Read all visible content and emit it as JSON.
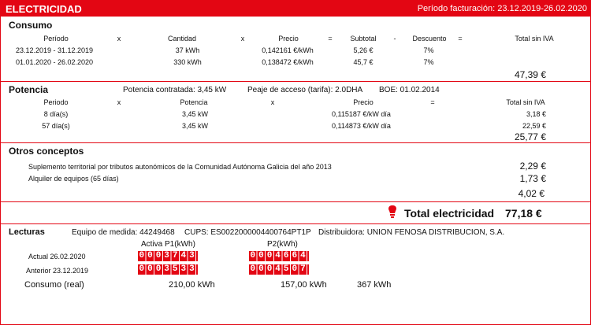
{
  "header": {
    "title": "ELECTRICIDAD",
    "period": "Período facturación: 23.12.2019-26.02.2020"
  },
  "consumo": {
    "title": "Consumo",
    "columns": [
      "Período",
      "x",
      "Cantidad",
      "x",
      "Precio",
      "=",
      "Subtotal",
      "-",
      "Descuento",
      "=",
      "Total sin IVA"
    ],
    "rows": [
      [
        "23.12.2019 - 31.12.2019",
        "37 kWh",
        "0,142161 €/kWh",
        "5,26 €",
        "7%"
      ],
      [
        "01.01.2020 - 26.02.2020",
        "330 kWh",
        "0,138472 €/kWh",
        "45,7 €",
        "7%"
      ]
    ],
    "total": "47,39 €"
  },
  "potencia": {
    "title": "Potencia",
    "contracted": "Potencia contratada: 3,45 kW",
    "tariff": "Peaje de acceso (tarifa): 2.0DHA",
    "boe": "BOE: 01.02.2014",
    "columns": [
      "Periodo",
      "x",
      "Potencia",
      "x",
      "Precio",
      "=",
      "Total sin IVA"
    ],
    "rows": [
      [
        "8 día(s)",
        "3,45 kW",
        "0,115187 €/kW día",
        "3,18 €"
      ],
      [
        "57 día(s)",
        "3,45 kW",
        "0,114873 €/kW día",
        "22,59 €"
      ]
    ],
    "total": "25,77 €"
  },
  "otros": {
    "title": "Otros conceptos",
    "items": [
      {
        "label": "Suplemento territorial por tributos autonómicos de la Comunidad Autónoma Galicia del año 2013",
        "amount": "2,29 €"
      },
      {
        "label": "Alquiler de equipos (65 días)",
        "amount": "1,73 €"
      }
    ],
    "total": "4,02 €"
  },
  "total": {
    "label": "Total electricidad",
    "amount": "77,18 €"
  },
  "lecturas": {
    "title": "Lecturas",
    "meter": "Equipo de medida: 44249468",
    "cups": "CUPS: ES0022000004400764PT1P",
    "distributor": "Distribuidora: UNION FENOSA DISTRIBUCION, S.A.",
    "columns": [
      "Activa P1(kWh)",
      "P2(kWh)"
    ],
    "readings": [
      {
        "label": "Actual 26.02.2020",
        "p1": "0003743",
        "p2": "0004664"
      },
      {
        "label": "Anterior 23.12.2019",
        "p1": "0003533",
        "p2": "0004507"
      }
    ],
    "consumption": {
      "label": "Consumo (real)",
      "p1": "210,00 kWh",
      "p2": "157,00 kWh",
      "total": "367 kWh"
    }
  }
}
